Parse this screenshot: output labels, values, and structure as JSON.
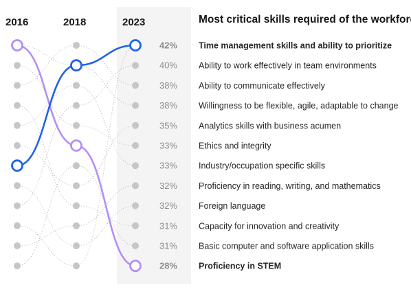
{
  "chart_data": {
    "type": "bump",
    "title": "Most critical skills required of the workforce",
    "years": [
      "2016",
      "2018",
      "2023"
    ],
    "highlight_colors": {
      "blue": "#1f62e8",
      "purple": "#b48ef8"
    },
    "rows": [
      {
        "label": "Time management skills and ability to prioritize",
        "value_2023": "42%",
        "highlight": "blue"
      },
      {
        "label": "Ability to work effectively in team environments",
        "value_2023": "40%"
      },
      {
        "label": "Ability to communicate effectively",
        "value_2023": "38%"
      },
      {
        "label": "Willingness to be flexible, agile, adaptable to change",
        "value_2023": "38%"
      },
      {
        "label": "Analytics skills with business acumen",
        "value_2023": "35%"
      },
      {
        "label": "Ethics and integrity",
        "value_2023": "33%"
      },
      {
        "label": "Industry/occupation specific skills",
        "value_2023": "33%"
      },
      {
        "label": "Proficiency in reading, writing, and mathematics",
        "value_2023": "32%"
      },
      {
        "label": "Foreign language",
        "value_2023": "32%"
      },
      {
        "label": "Capacity for innovation and creativity",
        "value_2023": "31%"
      },
      {
        "label": "Basic computer and software application skills",
        "value_2023": "31%"
      },
      {
        "label": "Proficiency in STEM",
        "value_2023": "28%",
        "highlight": "purple"
      }
    ],
    "highlight_ranks": {
      "blue": {
        "2016": 7,
        "2018": 2,
        "2023": 1
      },
      "purple": {
        "2016": 1,
        "2018": 6,
        "2023": 12
      }
    },
    "background_links": [
      [
        1,
        2
      ],
      [
        2,
        5
      ],
      [
        3,
        1
      ],
      [
        4,
        9
      ],
      [
        5,
        3
      ],
      [
        6,
        8
      ],
      [
        8,
        11
      ],
      [
        9,
        4
      ],
      [
        10,
        12
      ],
      [
        11,
        10
      ],
      [
        12,
        7
      ],
      [
        1,
        3
      ],
      [
        2,
        4
      ],
      [
        3,
        7
      ],
      [
        4,
        2
      ],
      [
        5,
        6
      ],
      [
        6,
        12
      ],
      [
        7,
        11
      ],
      [
        8,
        5
      ],
      [
        9,
        10
      ],
      [
        10,
        8
      ],
      [
        11,
        9
      ],
      [
        12,
        1
      ]
    ]
  }
}
